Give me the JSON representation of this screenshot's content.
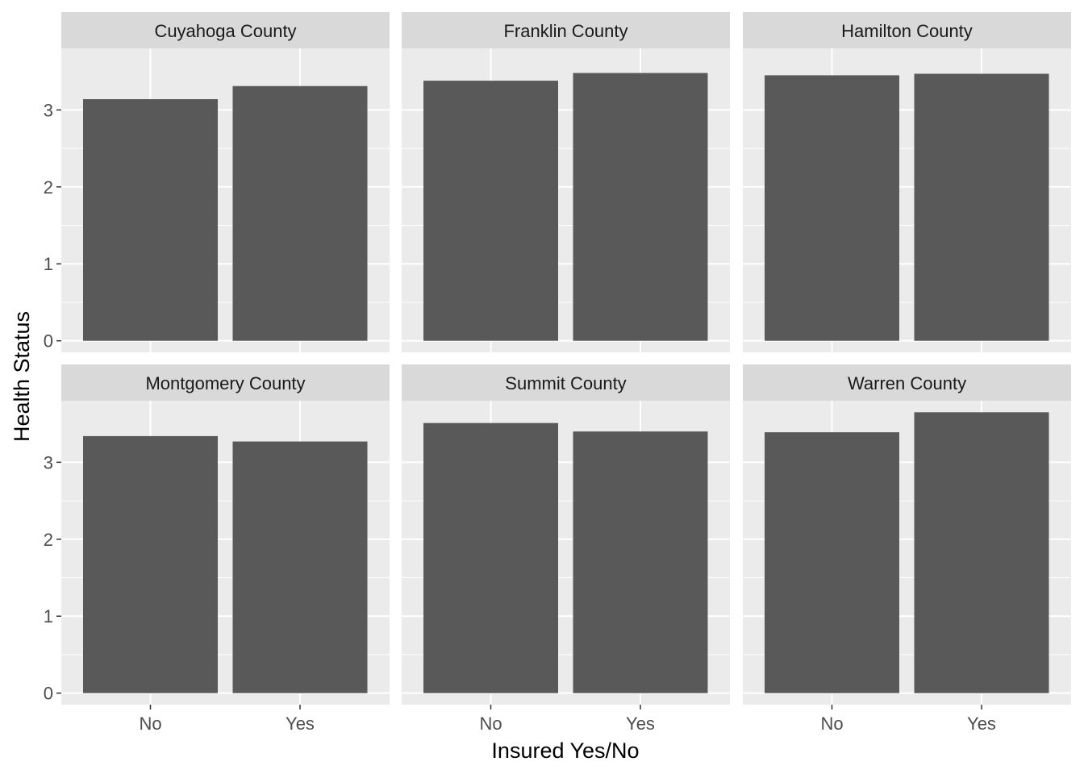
{
  "chart_data": {
    "type": "bar",
    "layout": "facet-grid",
    "xlabel": "Insured Yes/No",
    "ylabel": "Health Status",
    "categories": [
      "No",
      "Yes"
    ],
    "yticks": [
      0,
      1,
      2,
      3
    ],
    "ylim": [
      -0.15,
      3.8
    ],
    "grid": true,
    "colors": {
      "bar": "#595959",
      "panel_bg": "#ebebeb",
      "strip_bg": "#d9d9d9",
      "grid": "#ffffff"
    },
    "facets": [
      {
        "name": "Cuyahoga County",
        "values": [
          3.14,
          3.31
        ]
      },
      {
        "name": "Franklin County",
        "values": [
          3.38,
          3.48
        ]
      },
      {
        "name": "Hamilton County",
        "values": [
          3.45,
          3.47
        ]
      },
      {
        "name": "Montgomery County",
        "values": [
          3.34,
          3.27
        ]
      },
      {
        "name": "Summit County",
        "values": [
          3.51,
          3.4
        ]
      },
      {
        "name": "Warren County",
        "values": [
          3.39,
          3.65
        ]
      }
    ]
  }
}
